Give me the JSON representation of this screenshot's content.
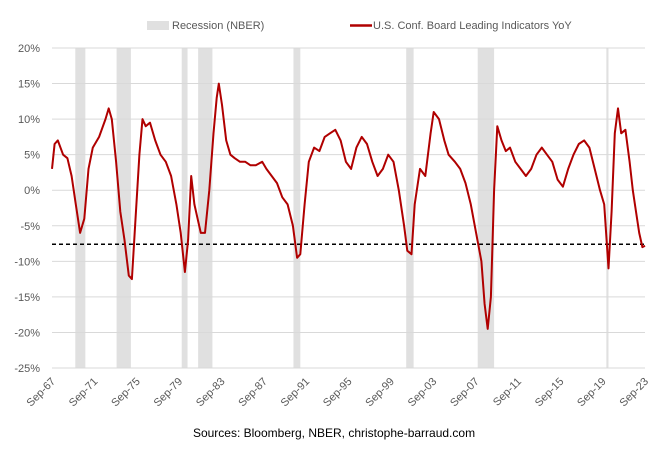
{
  "chart_data": {
    "type": "line",
    "title": "",
    "source": "Sources: Bloomberg, NBER, christophe-barraud.com",
    "legend": [
      {
        "label": "Recession (NBER)",
        "kind": "band",
        "color": "#e0e0e0"
      },
      {
        "label": "U.S. Conf. Board Leading Indicators YoY",
        "kind": "line",
        "color": "#b00000"
      }
    ],
    "legend_position": "top-center",
    "ylim": [
      -25,
      20
    ],
    "yticks": [
      20,
      15,
      10,
      5,
      0,
      -5,
      -10,
      -15,
      -20,
      -25
    ],
    "ytick_labels": [
      "20%",
      "15%",
      "10%",
      "5%",
      "0%",
      "-5%",
      "-10%",
      "-15%",
      "-20%",
      "-25%"
    ],
    "xlim": [
      1967.75,
      2023.75
    ],
    "xticks": [
      1967.75,
      1971.75,
      1975.75,
      1979.75,
      1983.75,
      1987.75,
      1991.75,
      1995.75,
      1999.75,
      2003.75,
      2007.75,
      2011.75,
      2015.75,
      2019.75,
      2023.75
    ],
    "xtick_labels": [
      "Sep-67",
      "Sep-71",
      "Sep-75",
      "Sep-79",
      "Sep-83",
      "Sep-87",
      "Sep-91",
      "Sep-95",
      "Sep-99",
      "Sep-03",
      "Sep-07",
      "Sep-11",
      "Sep-15",
      "Sep-19",
      "Sep-23"
    ],
    "grid": true,
    "reference_line": {
      "value": -7.6,
      "style": "dashed",
      "color": "#000000"
    },
    "recessions": [
      [
        1969.95,
        1970.9
      ],
      [
        1973.85,
        1975.2
      ],
      [
        1980.0,
        1980.55
      ],
      [
        1981.55,
        1982.9
      ],
      [
        1990.55,
        1991.2
      ],
      [
        2001.2,
        2001.9
      ],
      [
        2007.95,
        2009.5
      ],
      [
        2020.1,
        2020.3
      ]
    ],
    "series": [
      {
        "name": "U.S. Conf. Board Leading Indicators YoY",
        "x": [
          1967.75,
          1968.0,
          1968.3,
          1968.8,
          1969.2,
          1969.6,
          1970.0,
          1970.4,
          1970.8,
          1971.2,
          1971.6,
          1972.2,
          1972.8,
          1973.1,
          1973.4,
          1973.8,
          1974.2,
          1974.6,
          1975.0,
          1975.3,
          1975.6,
          1976.0,
          1976.3,
          1976.6,
          1977.0,
          1977.5,
          1978.0,
          1978.5,
          1979.0,
          1979.5,
          1979.9,
          1980.3,
          1980.6,
          1980.9,
          1981.2,
          1981.5,
          1981.8,
          1982.2,
          1982.6,
          1983.0,
          1983.3,
          1983.5,
          1983.8,
          1984.2,
          1984.6,
          1985.0,
          1985.5,
          1986.0,
          1986.5,
          1987.0,
          1987.6,
          1988.0,
          1988.5,
          1989.0,
          1989.5,
          1990.0,
          1990.5,
          1990.9,
          1991.2,
          1991.6,
          1992.0,
          1992.5,
          1993.0,
          1993.5,
          1994.0,
          1994.5,
          1995.0,
          1995.5,
          1996.0,
          1996.5,
          1997.0,
          1997.5,
          1998.0,
          1998.5,
          1999.0,
          1999.5,
          2000.0,
          2000.5,
          2001.0,
          2001.3,
          2001.7,
          2002.0,
          2002.5,
          2003.0,
          2003.5,
          2003.8,
          2004.3,
          2004.8,
          2005.2,
          2005.8,
          2006.3,
          2006.8,
          2007.3,
          2007.8,
          2008.3,
          2008.6,
          2008.9,
          2009.2,
          2009.5,
          2009.8,
          2010.2,
          2010.6,
          2011.0,
          2011.5,
          2012.0,
          2012.5,
          2013.0,
          2013.5,
          2014.0,
          2014.5,
          2015.0,
          2015.5,
          2016.0,
          2016.5,
          2017.0,
          2017.5,
          2018.0,
          2018.5,
          2019.0,
          2019.5,
          2019.9,
          2020.3,
          2020.6,
          2020.9,
          2021.2,
          2021.5,
          2021.9,
          2022.3,
          2022.6,
          2022.9,
          2023.2,
          2023.5,
          2023.75
        ],
        "values": [
          3,
          6.5,
          7,
          5,
          4.5,
          2,
          -2,
          -6,
          -4,
          3,
          6,
          7.5,
          10,
          11.5,
          10,
          4,
          -3,
          -7,
          -12,
          -12.5,
          -5,
          5,
          10,
          9,
          9.5,
          7,
          5,
          4,
          2,
          -2,
          -6,
          -11.5,
          -7,
          2,
          -2,
          -4,
          -6,
          -6,
          0,
          8,
          13,
          15,
          12,
          7,
          5,
          4.5,
          4,
          4,
          3.5,
          3.5,
          4,
          3,
          2,
          1,
          -1,
          -2,
          -5,
          -9.5,
          -9,
          -2,
          4,
          6,
          5.5,
          7.5,
          8,
          8.5,
          7,
          4,
          3,
          6,
          7.5,
          6.5,
          4,
          2,
          3,
          5,
          4,
          0,
          -5,
          -8.5,
          -9,
          -2,
          3,
          2,
          8,
          11,
          10,
          7,
          5,
          4,
          3,
          1,
          -2,
          -6,
          -10,
          -16,
          -19.5,
          -15,
          0,
          9,
          7,
          5.5,
          6,
          4,
          3,
          2,
          3,
          5,
          6,
          5,
          4,
          1.5,
          0.5,
          3,
          5,
          6.5,
          7,
          6,
          3,
          0,
          -2,
          -11,
          -3,
          8,
          11.5,
          8,
          8.5,
          4,
          0,
          -3,
          -6,
          -8,
          -7.8
        ]
      }
    ]
  }
}
